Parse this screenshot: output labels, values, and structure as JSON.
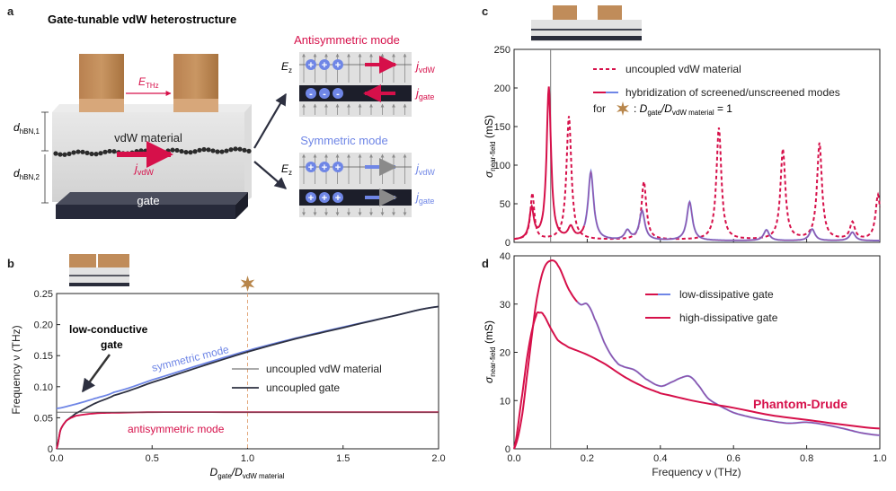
{
  "colors": {
    "red": "#d6104a",
    "blue": "#6f86e6",
    "dark": "#2d3040",
    "gold": "#b8864b",
    "copper": "#c08c5a",
    "grey_box": "#d9d9d9",
    "gate_dark": "#272a3a",
    "vline": "#777777",
    "dashed_vline": "#e2a77b"
  },
  "panel_a": {
    "letter": "a",
    "title": "Gate-tunable vdW heterostructure",
    "e_thz": "E",
    "e_thz_sub": "THz",
    "d1": "d",
    "d1_sub": "hBN,1",
    "d2": "d",
    "d2_sub": "hBN,2",
    "material_label": "vdW material",
    "gate_label": "gate",
    "j_vdw": "j",
    "j_vdw_sub": "vdW",
    "anti_title": "Antisymmetric mode",
    "sym_title": "Symmetric mode",
    "ez": "E",
    "ez_sub": "z",
    "j_gate": "j",
    "j_gate_sub": "gate",
    "plus": "+",
    "minus": "-"
  },
  "panel_b": {
    "letter": "b",
    "annotation": "low-conductive gate",
    "annotation_line1": "low-conductive",
    "annotation_line2": "gate",
    "ylabel": "Frequency ν (THz)",
    "xlabel_main": "D",
    "xlabel_sub1": "gate",
    "xlabel_mid": "/D",
    "xlabel_sub2": "vdW material",
    "curve_label_sym": "symmetric mode",
    "curve_label_anti": "antisymmetric mode",
    "legend": [
      "uncoupled vdW material",
      "uncoupled gate"
    ]
  },
  "panel_c": {
    "letter": "c",
    "ylabel_main": "σ",
    "ylabel_sub": "near-field",
    "ylabel_unit": "(mS)",
    "legend_dotted": "uncoupled vdW material",
    "legend_solid": "hybridization of screened/unscreened modes",
    "legend_for": "for",
    "legend_cond_d1": "D",
    "legend_cond_s1": "gate",
    "legend_cond_d2": "/D",
    "legend_cond_s2": "vdW material",
    "legend_cond_eq": "= 1",
    "legend_colon": ":"
  },
  "panel_d": {
    "letter": "d",
    "ylabel_main": "σ",
    "ylabel_sub": "near-field",
    "ylabel_unit": "(mS)",
    "xlabel": "Frequency ν (THz)",
    "legend": [
      "low-dissipative gate",
      "high-dissipative gate"
    ],
    "annotation": "Phantom-Drude"
  },
  "chart_data": [
    {
      "panel": "b",
      "type": "line",
      "xlabel": "Dgate/DvdW material",
      "ylabel": "Frequency ν (THz)",
      "xlim": [
        0,
        2.0
      ],
      "ylim": [
        0,
        0.25
      ],
      "xticks": [
        "0.0",
        "0.5",
        "1.0",
        "1.5",
        "2.0"
      ],
      "yticks": [
        "0",
        "0.05",
        "0.10",
        "0.15",
        "0.20",
        "0.25"
      ],
      "marker_x": 1.0,
      "series": [
        {
          "name": "symmetric mode",
          "x": [
            0,
            0.1,
            0.2,
            0.3,
            0.5,
            0.75,
            1.0,
            1.25,
            1.5,
            1.75,
            2.0
          ],
          "values": [
            0.065,
            0.072,
            0.081,
            0.091,
            0.111,
            0.135,
            0.158,
            0.178,
            0.196,
            0.213,
            0.229
          ]
        },
        {
          "name": "uncoupled gate",
          "x": [
            0,
            0.02,
            0.05,
            0.1,
            0.2,
            0.3,
            0.5,
            0.75,
            1.0,
            1.25,
            1.5,
            1.75,
            2.0
          ],
          "values": [
            0.0,
            0.03,
            0.045,
            0.057,
            0.073,
            0.086,
            0.107,
            0.132,
            0.156,
            0.177,
            0.195,
            0.213,
            0.229
          ]
        },
        {
          "name": "antisymmetric mode",
          "x": [
            0,
            0.02,
            0.05,
            0.1,
            0.2,
            0.3,
            0.5,
            1.0,
            1.5,
            2.0
          ],
          "values": [
            0.0,
            0.03,
            0.045,
            0.053,
            0.057,
            0.058,
            0.059,
            0.059,
            0.059,
            0.059
          ]
        },
        {
          "name": "uncoupled vdW material",
          "x": [
            0,
            2.0
          ],
          "values": [
            0.059,
            0.059
          ]
        }
      ]
    },
    {
      "panel": "c",
      "type": "line",
      "xlim": [
        0,
        1.0
      ],
      "ylim": [
        0,
        250
      ],
      "yticks": [
        "0",
        "50",
        "100",
        "150",
        "200",
        "250"
      ],
      "marker_x": 0.1,
      "series": [
        {
          "name": "uncoupled vdW material",
          "peaks": [
            [
              0.05,
              60
            ],
            [
              0.15,
              160
            ],
            [
              0.355,
              75
            ],
            [
              0.56,
              145
            ],
            [
              0.735,
              117
            ],
            [
              0.835,
              125
            ],
            [
              0.925,
              22
            ],
            [
              0.995,
              58
            ]
          ]
        },
        {
          "name": "hybridization of screened/unscreened modes",
          "peaks": [
            [
              0.048,
              40
            ],
            [
              0.095,
              198
            ],
            [
              0.155,
              15
            ],
            [
              0.21,
              88
            ],
            [
              0.31,
              12
            ],
            [
              0.35,
              38
            ],
            [
              0.48,
              50
            ],
            [
              0.69,
              14
            ],
            [
              0.815,
              15
            ],
            [
              0.925,
              11
            ]
          ]
        }
      ]
    },
    {
      "panel": "d",
      "type": "line",
      "xlabel": "Frequency ν (THz)",
      "xlim": [
        0,
        1.0
      ],
      "ylim": [
        0,
        40
      ],
      "xticks": [
        "0.0",
        "0.2",
        "0.4",
        "0.6",
        "0.8",
        "1.0"
      ],
      "yticks": [
        "0",
        "10",
        "20",
        "30",
        "40"
      ],
      "marker_x": 0.1,
      "series": [
        {
          "name": "low-dissipative gate",
          "x": [
            0,
            0.02,
            0.04,
            0.06,
            0.08,
            0.1,
            0.12,
            0.15,
            0.18,
            0.2,
            0.22,
            0.25,
            0.28,
            0.3,
            0.33,
            0.36,
            0.4,
            0.43,
            0.46,
            0.48,
            0.5,
            0.53,
            0.56,
            0.6,
            0.65,
            0.7,
            0.75,
            0.8,
            0.85,
            0.9,
            0.95,
            1.0
          ],
          "values": [
            0,
            6,
            18,
            30,
            37,
            39,
            38,
            33,
            30,
            30,
            27,
            21.5,
            18,
            17,
            16.3,
            14.5,
            13,
            13.8,
            14.8,
            15,
            13.5,
            10.5,
            9.0,
            7.5,
            6.5,
            5.8,
            5.3,
            5.5,
            5.0,
            4.2,
            3.3,
            2.8
          ]
        },
        {
          "name": "high-dissipative gate",
          "x": [
            0,
            0.02,
            0.04,
            0.06,
            0.07,
            0.08,
            0.1,
            0.12,
            0.15,
            0.2,
            0.25,
            0.3,
            0.35,
            0.4,
            0.5,
            0.6,
            0.7,
            0.8,
            0.9,
            1.0
          ],
          "values": [
            0,
            10,
            21,
            27.5,
            28.2,
            27.8,
            25,
            22.5,
            21,
            19.5,
            17.5,
            15,
            13,
            11.5,
            9.8,
            8.5,
            7,
            6,
            5,
            4.2
          ]
        }
      ]
    }
  ]
}
